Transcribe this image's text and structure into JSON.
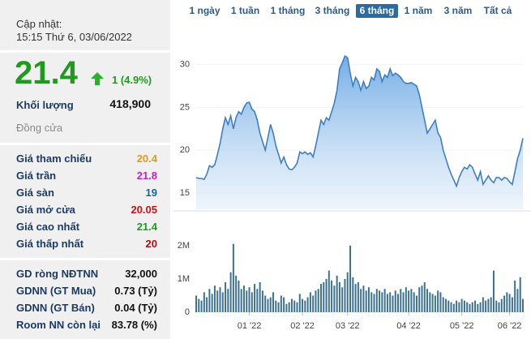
{
  "panel": {
    "updated_label": "Cập nhật:",
    "updated_time": "15:15 Thứ 6, 03/06/2022",
    "price": "21.4",
    "change": "1 (4.9%)",
    "volume_label": "Khối lượng",
    "volume": "418,900",
    "status": "Đồng cửa",
    "prices": [
      {
        "label": "Giá tham chiếu",
        "value": "20.4",
        "color": "#e8990c"
      },
      {
        "label": "Giá trần",
        "value": "21.8",
        "color": "#c41fc4"
      },
      {
        "label": "Giá sàn",
        "value": "19",
        "color": "#1f5fa8"
      },
      {
        "label": "Giá mở cửa",
        "value": "20.05",
        "color": "#cc1111"
      },
      {
        "label": "Giá cao nhất",
        "value": "21.4",
        "color": "#1f9a1f"
      },
      {
        "label": "Giá thấp nhất",
        "value": "20",
        "color": "#aa1111"
      }
    ],
    "foreign": [
      {
        "label": "GD ròng NĐTNN",
        "value": "32,000"
      },
      {
        "label": "GDNN (GT Mua)",
        "value": "0.73 (Tỷ)"
      },
      {
        "label": "GDNN (GT Bán)",
        "value": "0.04 (Tỷ)"
      },
      {
        "label": "Room NN còn lại",
        "value": "83.78 (%)"
      }
    ]
  },
  "range_buttons": [
    "1 ngày",
    "1 tuần",
    "1 tháng",
    "3 tháng",
    "6 tháng",
    "1 năm",
    "3 năm",
    "Tất cả"
  ],
  "active_range": 4,
  "chart_data": [
    {
      "type": "area",
      "series": [
        {
          "color": "#3f7fbf",
          "values": [
            16.8,
            16.7,
            16.7,
            16.6,
            17.2,
            18.2,
            18.0,
            18.3,
            19.5,
            20.8,
            22.5,
            23.8,
            23.0,
            24.0,
            22.5,
            23.8,
            24.5,
            24.2,
            25.0,
            25.5,
            25.6,
            24.8,
            24.5,
            23.5,
            22.0,
            21.0,
            20.0,
            21.5,
            23.0,
            22.0,
            20.5,
            19.5,
            18.5,
            19.2,
            18.3,
            17.8,
            17.7,
            18.0,
            18.5,
            19.8,
            19.6,
            19.8,
            19.5,
            19.7,
            19.2,
            20.5,
            22.0,
            23.5,
            23.0,
            23.8,
            23.5,
            24.5,
            25.5,
            27.0,
            29.5,
            30.2,
            31.0,
            30.8,
            29.0,
            27.5,
            28.5,
            28.0,
            27.0,
            28.0,
            27.2,
            27.5,
            28.5,
            28.2,
            29.5,
            29.2,
            28.0,
            28.8,
            28.5,
            29.5,
            28.7,
            29.0,
            28.8,
            28.5,
            28.0,
            27.8,
            27.8,
            27.9,
            27.7,
            27.5,
            26.5,
            25.0,
            23.5,
            22.0,
            22.5,
            23.0,
            23.5,
            22.0,
            21.5,
            20.0,
            19.0,
            18.0,
            17.2,
            16.5,
            15.8,
            16.8,
            17.5,
            18.0,
            17.8,
            18.3,
            18.0,
            17.2,
            16.5,
            17.5,
            16.0,
            16.5,
            17.0,
            16.5,
            16.2,
            16.8,
            16.8,
            16.5,
            16.8,
            16.7,
            16.3,
            16.0,
            17.5,
            19.0,
            20.0,
            21.4
          ]
        }
      ],
      "xlim": [
        0,
        123
      ],
      "ylim": [
        13.1,
        34.7
      ],
      "yticks": [
        15,
        20,
        25,
        30
      ],
      "grid": true
    },
    {
      "type": "bar",
      "color": "#3d7192",
      "values": [
        500000,
        400000,
        350000,
        600000,
        450000,
        700000,
        550000,
        800000,
        650000,
        750000,
        600000,
        900000,
        700000,
        1200000,
        2050000,
        1100000,
        950000,
        700000,
        800000,
        650000,
        750000,
        600000,
        850000,
        700000,
        900000,
        650000,
        500000,
        400000,
        450000,
        600000,
        350000,
        300000,
        500000,
        450000,
        250000,
        300000,
        400000,
        350000,
        300000,
        550000,
        400000,
        350000,
        450000,
        600000,
        500000,
        650000,
        700000,
        850000,
        900000,
        1000000,
        1250000,
        950000,
        800000,
        1100000,
        900000,
        750000,
        1000000,
        1200000,
        2000000,
        1050000,
        850000,
        900000,
        700000,
        800000,
        650000,
        750000,
        600000,
        550000,
        700000,
        650000,
        600000,
        700000,
        550000,
        600000,
        500000,
        650000,
        550000,
        700000,
        600000,
        750000,
        650000,
        700000,
        600000,
        500000,
        750000,
        800000,
        900000,
        700000,
        600000,
        550000,
        500000,
        650000,
        600000,
        450000,
        400000,
        350000,
        300000,
        250000,
        350000,
        300000,
        400000,
        350000,
        300000,
        250000,
        300000,
        350000,
        250000,
        300000,
        450000,
        350000,
        400000,
        450000,
        1250000,
        350000,
        300000,
        400000,
        500000,
        600000,
        550000,
        450000,
        950000,
        700000,
        1050000,
        400000
      ],
      "xlim": [
        0,
        123
      ],
      "ylim": [
        0,
        2800000
      ],
      "yticks": [
        0,
        {
          "value": 1000000,
          "label": "1M"
        },
        {
          "value": 2000000,
          "label": "2M"
        }
      ],
      "xticks": [
        {
          "value": 20,
          "label": "01 '22"
        },
        {
          "value": 40,
          "label": "02 '22"
        },
        {
          "value": 57,
          "label": "03 '22"
        },
        {
          "value": 80,
          "label": "04 '22"
        },
        {
          "value": 100,
          "label": "05 '22"
        },
        {
          "value": 118,
          "label": "06 '22"
        }
      ]
    }
  ]
}
